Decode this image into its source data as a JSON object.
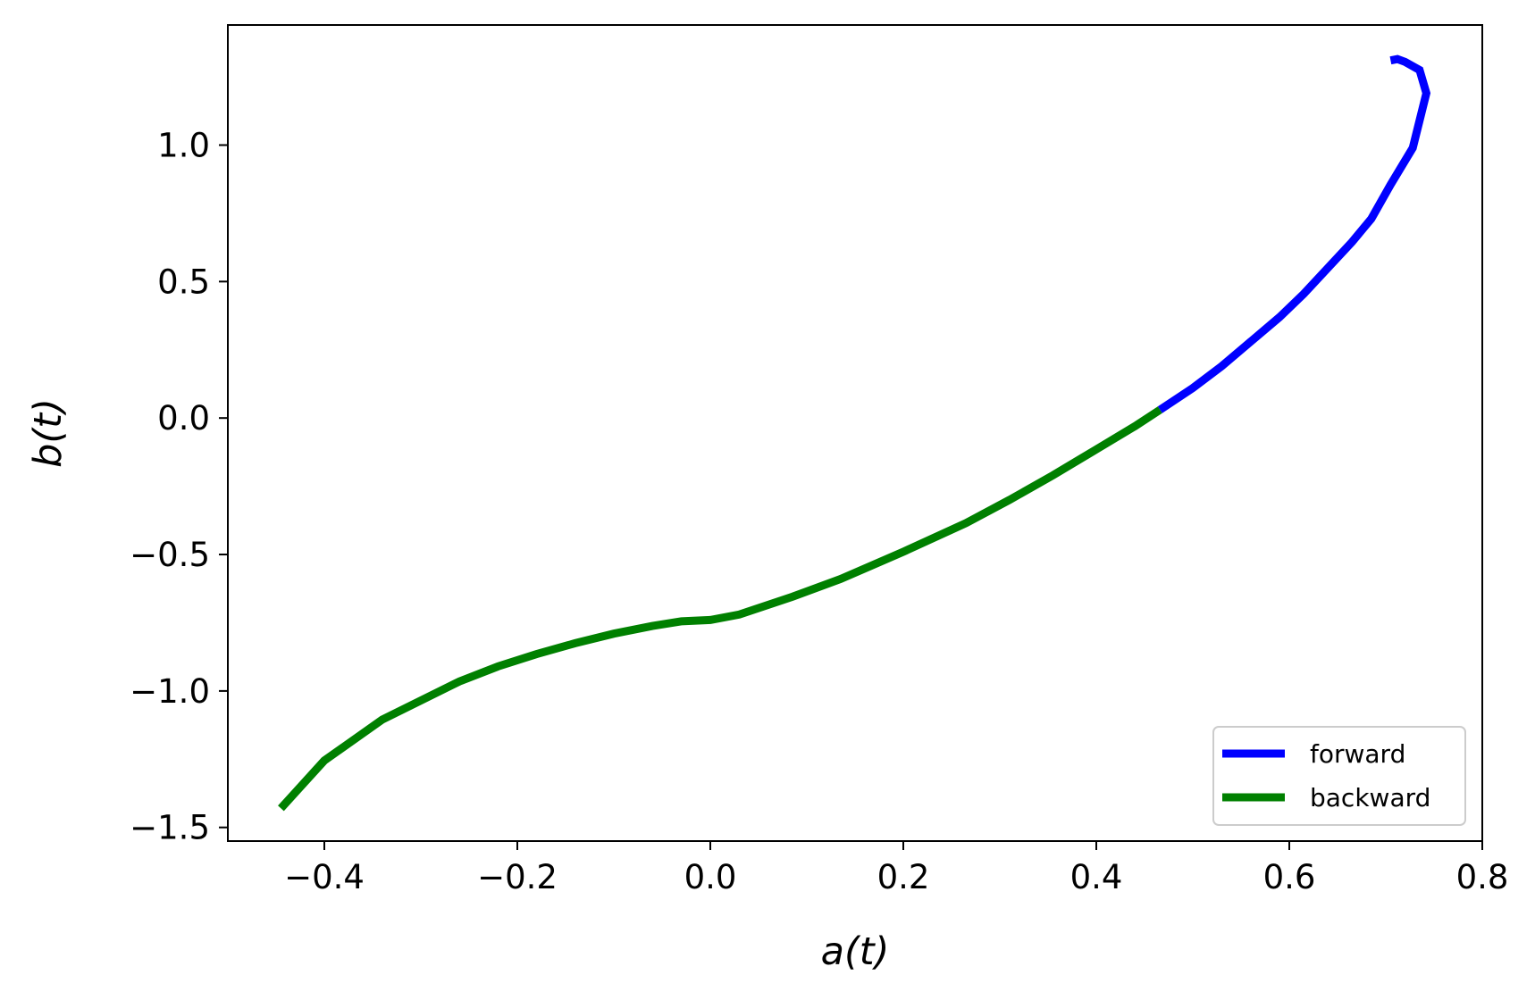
{
  "chart_data": {
    "type": "line",
    "title": "",
    "xlabel": "a(t)",
    "ylabel": "b(t)",
    "xlim": [
      -0.5,
      0.8
    ],
    "ylim": [
      -1.55,
      1.44
    ],
    "x_ticks": [
      -0.4,
      -0.2,
      0.0,
      0.2,
      0.4,
      0.6,
      0.8
    ],
    "x_tick_labels": [
      "−0.4",
      "−0.2",
      "0.0",
      "0.2",
      "0.4",
      "0.6",
      "0.8"
    ],
    "y_ticks": [
      -1.5,
      -1.0,
      -0.5,
      0.0,
      0.5,
      1.0
    ],
    "y_tick_labels": [
      "−1.5",
      "−1.0",
      "−0.5",
      "0.0",
      "0.5",
      "1.0"
    ],
    "grid": false,
    "legend_position": "lower-right",
    "series": [
      {
        "name": "forward",
        "color": "#0000ff",
        "x": [
          0.466,
          0.5,
          0.53,
          0.56,
          0.59,
          0.615,
          0.64,
          0.665,
          0.685,
          0.705,
          0.728,
          0.742,
          0.735,
          0.72,
          0.712,
          0.705
        ],
        "y": [
          0.03,
          0.11,
          0.19,
          0.28,
          0.37,
          0.455,
          0.55,
          0.645,
          0.73,
          0.855,
          0.99,
          1.19,
          1.275,
          1.305,
          1.315,
          1.31
        ]
      },
      {
        "name": "backward",
        "color": "#008000",
        "x": [
          -0.445,
          -0.4,
          -0.34,
          -0.26,
          -0.22,
          -0.18,
          -0.14,
          -0.1,
          -0.06,
          -0.03,
          0.0,
          0.03,
          0.085,
          0.135,
          0.2,
          0.265,
          0.31,
          0.355,
          0.4,
          0.44,
          0.466
        ],
        "y": [
          -1.43,
          -1.255,
          -1.105,
          -0.965,
          -0.91,
          -0.865,
          -0.825,
          -0.79,
          -0.762,
          -0.745,
          -0.74,
          -0.72,
          -0.655,
          -0.59,
          -0.49,
          -0.385,
          -0.3,
          -0.21,
          -0.115,
          -0.03,
          0.03
        ]
      }
    ]
  }
}
